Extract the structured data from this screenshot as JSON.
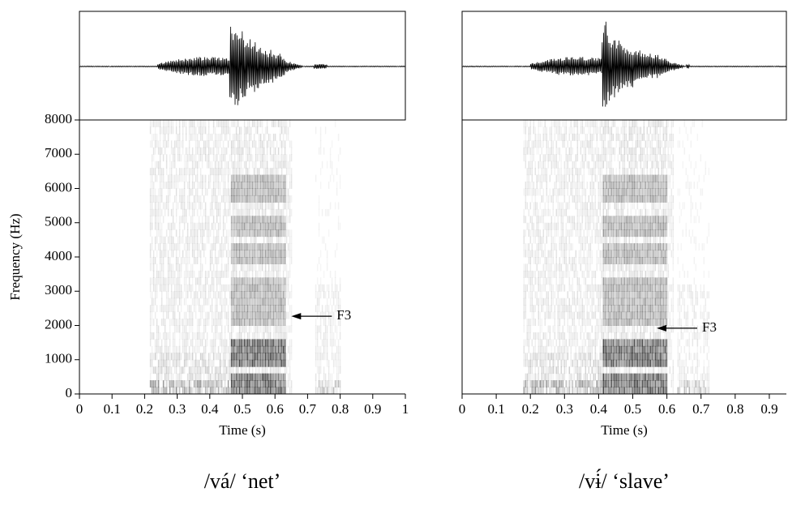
{
  "chart_data": [
    {
      "type": "spectrogram",
      "xlabel": "Time (s)",
      "ylabel": "Frequency (Hz)",
      "xlim": [
        0,
        1
      ],
      "xticks": [
        0,
        0.1,
        0.2,
        0.3,
        0.4,
        0.5,
        0.6,
        0.7,
        0.8,
        0.9,
        1
      ],
      "ylim": [
        0,
        8000
      ],
      "yticks": [
        0,
        1000,
        2000,
        3000,
        4000,
        5000,
        6000,
        7000,
        8000
      ],
      "annotations": [
        {
          "text": "F3",
          "x": 0.65,
          "y": 2270
        }
      ],
      "caption": "/vá/ ‘net’"
    },
    {
      "type": "spectrogram",
      "xlabel": "Time (s)",
      "xlim": [
        0,
        0.95
      ],
      "xticks": [
        0,
        0.1,
        0.2,
        0.3,
        0.4,
        0.5,
        0.6,
        0.7,
        0.8,
        0.9
      ],
      "ylim": [
        0,
        8000
      ],
      "annotations": [
        {
          "text": "F3",
          "x": 0.57,
          "y": 1920
        }
      ],
      "caption": "/vɨ́/ ‘slave’"
    }
  ]
}
